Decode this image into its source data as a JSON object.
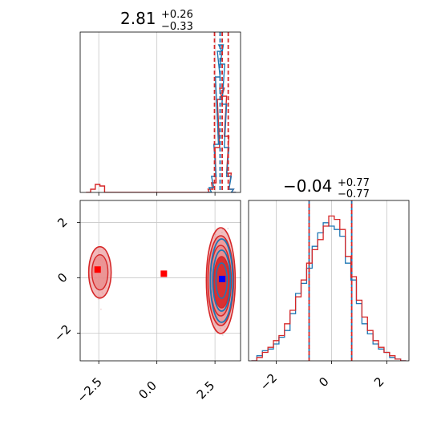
{
  "chart_data": {
    "type": "corner",
    "colors": {
      "red": "#d62728",
      "blue": "#1f77b4",
      "red_fill": "#e8898a",
      "red_dark": "#d62728",
      "truth_red": "#ff0000",
      "truth_blue": "#0000ff",
      "grid": "#c8c8c8",
      "axes": "#000000"
    },
    "panels": {
      "p1_hist": {
        "title_main": "2.81",
        "title_sup": "+0.26",
        "title_sub": "−0.33",
        "xlim": [
          -3.3,
          3.6
        ],
        "quantile_lines": [
          2.48,
          2.81,
          3.07
        ],
        "median_line": 2.72,
        "red_hist": [
          [
            -2.95,
            0.0
          ],
          [
            -2.75,
            0.02
          ],
          [
            -2.55,
            0.05
          ],
          [
            -2.35,
            0.04
          ],
          [
            -2.15,
            0.0
          ],
          [
            2.15,
            0.0
          ],
          [
            2.3,
            0.02
          ],
          [
            2.45,
            0.06
          ],
          [
            2.6,
            0.28
          ],
          [
            2.7,
            0.58
          ],
          [
            2.8,
            0.65
          ],
          [
            2.9,
            0.6
          ],
          [
            3.0,
            0.35
          ],
          [
            3.1,
            0.12
          ],
          [
            3.2,
            0.02
          ],
          [
            3.3,
            0.0
          ]
        ],
        "blue_hist": [
          [
            2.25,
            0.0
          ],
          [
            2.35,
            0.03
          ],
          [
            2.45,
            0.1
          ],
          [
            2.55,
            0.3
          ],
          [
            2.62,
            0.72
          ],
          [
            2.7,
            0.88
          ],
          [
            2.76,
            0.92
          ],
          [
            2.82,
            0.8
          ],
          [
            2.9,
            0.55
          ],
          [
            3.0,
            0.28
          ],
          [
            3.1,
            0.1
          ],
          [
            3.2,
            0.02
          ],
          [
            3.3,
            0.0
          ]
        ]
      },
      "p2_contour": {
        "xlim": [
          -3.3,
          3.6
        ],
        "ylim": [
          -3.0,
          2.8
        ],
        "xticks": [
          -2.5,
          0.0,
          2.5
        ],
        "xtick_labels": [
          "−2.5",
          "0.0",
          "2.5"
        ],
        "yticks": [
          -2,
          0,
          2
        ],
        "ytick_labels": [
          "−2",
          "0",
          "2"
        ],
        "truth_points_red": [
          [
            -2.55,
            0.3
          ],
          [
            0.3,
            0.15
          ]
        ],
        "truth_point_blue": [
          2.81,
          -0.04
        ]
      },
      "p3_hist": {
        "title_main": "−0.04",
        "title_sup": "+0.77",
        "title_sub": "−0.77",
        "xlim": [
          -3.0,
          2.8
        ],
        "xticks": [
          -2,
          0,
          2
        ],
        "xtick_labels": [
          "−2",
          "0",
          "2"
        ],
        "quantile_lines": [
          -0.81,
          0.73
        ],
        "red_hist": [
          [
            -2.8,
            0.0
          ],
          [
            -2.6,
            0.02
          ],
          [
            -2.4,
            0.05
          ],
          [
            -2.2,
            0.08
          ],
          [
            -2.0,
            0.12
          ],
          [
            -1.8,
            0.15
          ],
          [
            -1.6,
            0.22
          ],
          [
            -1.4,
            0.3
          ],
          [
            -1.2,
            0.38
          ],
          [
            -1.0,
            0.48
          ],
          [
            -0.8,
            0.58
          ],
          [
            -0.6,
            0.66
          ],
          [
            -0.4,
            0.72
          ],
          [
            -0.2,
            0.8
          ],
          [
            0.0,
            0.86
          ],
          [
            0.2,
            0.84
          ],
          [
            0.4,
            0.78
          ],
          [
            0.6,
            0.62
          ],
          [
            0.8,
            0.5
          ],
          [
            1.0,
            0.36
          ],
          [
            1.2,
            0.26
          ],
          [
            1.4,
            0.18
          ],
          [
            1.6,
            0.12
          ],
          [
            1.8,
            0.08
          ],
          [
            2.0,
            0.05
          ],
          [
            2.2,
            0.03
          ],
          [
            2.4,
            0.01
          ],
          [
            2.6,
            0.0
          ]
        ],
        "blue_hist": [
          [
            -2.8,
            0.0
          ],
          [
            -2.6,
            0.03
          ],
          [
            -2.4,
            0.06
          ],
          [
            -2.2,
            0.07
          ],
          [
            -2.0,
            0.1
          ],
          [
            -1.8,
            0.14
          ],
          [
            -1.6,
            0.18
          ],
          [
            -1.4,
            0.28
          ],
          [
            -1.2,
            0.4
          ],
          [
            -1.0,
            0.46
          ],
          [
            -0.8,
            0.55
          ],
          [
            -0.6,
            0.68
          ],
          [
            -0.4,
            0.76
          ],
          [
            -0.2,
            0.82
          ],
          [
            0.0,
            0.8
          ],
          [
            0.2,
            0.78
          ],
          [
            0.4,
            0.74
          ],
          [
            0.6,
            0.58
          ],
          [
            0.8,
            0.48
          ],
          [
            1.0,
            0.34
          ],
          [
            1.2,
            0.22
          ],
          [
            1.4,
            0.16
          ],
          [
            1.6,
            0.1
          ],
          [
            1.8,
            0.07
          ],
          [
            2.0,
            0.05
          ],
          [
            2.2,
            0.02
          ],
          [
            2.4,
            0.01
          ],
          [
            2.6,
            0.0
          ]
        ]
      }
    }
  }
}
